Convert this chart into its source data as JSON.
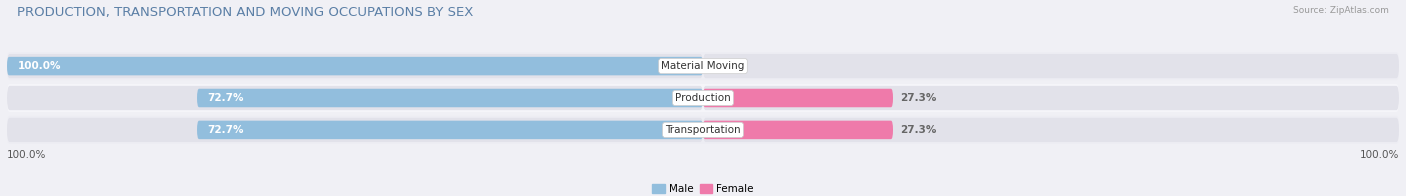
{
  "title": "PRODUCTION, TRANSPORTATION AND MOVING OCCUPATIONS BY SEX",
  "source_text": "Source: ZipAtlas.com",
  "categories": [
    "Material Moving",
    "Production",
    "Transportation"
  ],
  "male_values": [
    100.0,
    72.7,
    72.7
  ],
  "female_values": [
    0.0,
    27.3,
    27.3
  ],
  "male_color": "#92bedd",
  "female_color": "#ef7aaa",
  "bar_bg_color": "#e2e2ea",
  "row_bg_even": "#ededf3",
  "row_bg_odd": "#f5f5f9",
  "title_fontsize": 9.5,
  "label_fontsize": 7.5,
  "cat_fontsize": 7.5,
  "bar_height": 0.58,
  "figsize": [
    14.06,
    1.96
  ],
  "dpi": 100,
  "x_left_label": "100.0%",
  "x_right_label": "100.0%",
  "legend_male": "Male",
  "legend_female": "Female",
  "bg_color": "#f0f0f5",
  "title_color": "#5b7fa6",
  "tick_label_color": "#555555",
  "value_label_color_male": "#ffffff",
  "value_label_color_female_zero": "#aaaaaa",
  "value_label_color_female": "#ffffff",
  "cat_label_text_color": "#333333"
}
